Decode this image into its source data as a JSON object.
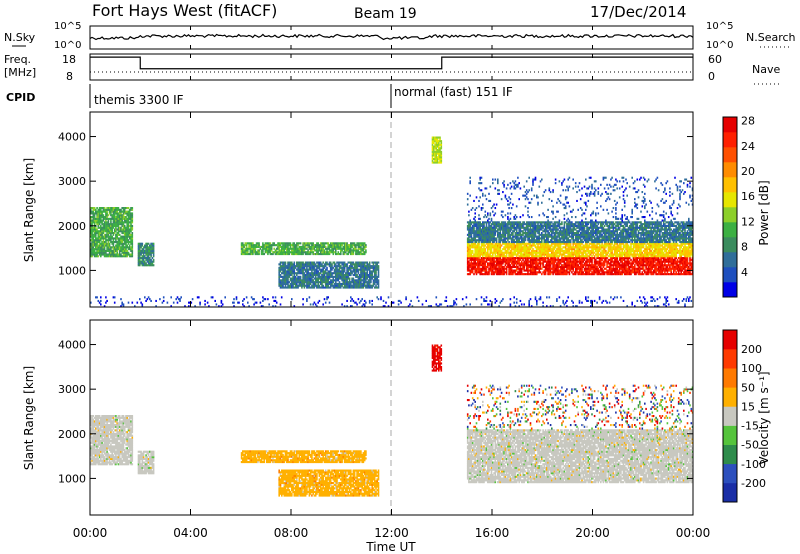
{
  "header": {
    "station": "Fort Hays West (fitACF)",
    "beam": "Beam 19",
    "date": "17/Dec/2014"
  },
  "noise_panel": {
    "left_label": "N.Sky",
    "right_label": "N.Search",
    "left_ticks": [
      "10^5",
      "10^0"
    ],
    "right_ticks": [
      "10^5",
      "10^0"
    ]
  },
  "freq_panel": {
    "left_label_line1": "Freq.",
    "left_label_line2": "[MHz]",
    "right_label": "Nave",
    "left_ticks": [
      "18",
      "8"
    ],
    "right_ticks": [
      "60",
      "0"
    ]
  },
  "cpid_panel": {
    "label": "CPID",
    "modes": [
      {
        "text": "themis 3300 IF",
        "start_hour": 0
      },
      {
        "text": "normal (fast) 151 IF",
        "start_hour": 12
      }
    ]
  },
  "time_axis": {
    "label": "Time UT",
    "ticks": [
      "00:00",
      "04:00",
      "08:00",
      "12:00",
      "16:00",
      "20:00",
      "00:00"
    ]
  },
  "chart_data": [
    {
      "type": "heatmap",
      "name": "power",
      "ylabel": "Slant Range [km]",
      "yticks": [
        "1000",
        "2000",
        "3000",
        "4000"
      ],
      "xlim_hours": [
        0,
        24
      ],
      "ylim_km": [
        180,
        4550
      ],
      "colorbar_label": "Power [dB]",
      "colorbar_ticks": [
        "4",
        "8",
        "12",
        "16",
        "20",
        "24",
        "28"
      ],
      "colorbar_colors": [
        "#0000e6",
        "#1e4fbe",
        "#2f6e9a",
        "#3b8c5e",
        "#3cb043",
        "#8ccf2a",
        "#e6e600",
        "#ffc000",
        "#ff8c00",
        "#ff5000",
        "#ff2000",
        "#e60000"
      ],
      "regions": [
        {
          "t0": 0.0,
          "t1": 1.7,
          "r0": 1300,
          "r1": 2400,
          "level": 0.35
        },
        {
          "t0": 1.9,
          "t1": 2.5,
          "r0": 1100,
          "r1": 1600,
          "level": 0.25
        },
        {
          "t0": 6.0,
          "t1": 11.0,
          "r0": 1350,
          "r1": 1600,
          "level": 0.35
        },
        {
          "t0": 7.5,
          "t1": 11.5,
          "r0": 600,
          "r1": 1200,
          "level": 0.2
        },
        {
          "t0": 13.6,
          "t1": 14.0,
          "r0": 3400,
          "r1": 4000,
          "level": 0.5
        },
        {
          "t0": 15.0,
          "t1": 24.0,
          "r0": 900,
          "r1": 2100,
          "level": 0.75
        },
        {
          "t0": 15.0,
          "t1": 24.0,
          "r0": 2100,
          "r1": 3100,
          "level": 0.1
        },
        {
          "t0": 0.0,
          "t1": 24.0,
          "r0": 180,
          "r1": 400,
          "level": 0.05
        }
      ]
    },
    {
      "type": "heatmap",
      "name": "velocity",
      "ylabel": "Slant Range [km]",
      "yticks": [
        "1000",
        "2000",
        "3000",
        "4000"
      ],
      "xlim_hours": [
        0,
        24
      ],
      "ylim_km": [
        180,
        4550
      ],
      "colorbar_label": "Velocity [m s⁻¹]",
      "colorbar_ticks": [
        "200",
        "100",
        "50",
        "15",
        "-15",
        "-50",
        "-100",
        "-200"
      ],
      "colorbar_colors": [
        "#1a2ea6",
        "#2c4fbd",
        "#2e8c4b",
        "#55c43c",
        "#c8c8c0",
        "#ffb000",
        "#ff7a00",
        "#ff3a00",
        "#e60000"
      ],
      "regions": [
        {
          "t0": 0.0,
          "t1": 1.7,
          "r0": 1300,
          "r1": 2400,
          "class": "gray"
        },
        {
          "t0": 1.9,
          "t1": 2.5,
          "r0": 1100,
          "r1": 1600,
          "class": "gray"
        },
        {
          "t0": 6.0,
          "t1": 11.0,
          "r0": 1350,
          "r1": 1600,
          "class": "orange"
        },
        {
          "t0": 7.5,
          "t1": 11.5,
          "r0": 600,
          "r1": 1200,
          "class": "orange"
        },
        {
          "t0": 13.6,
          "t1": 14.0,
          "r0": 3400,
          "r1": 4000,
          "class": "red"
        },
        {
          "t0": 15.0,
          "t1": 24.0,
          "r0": 900,
          "r1": 2100,
          "class": "gray"
        },
        {
          "t0": 15.0,
          "t1": 24.0,
          "r0": 2100,
          "r1": 3100,
          "class": "mixed"
        }
      ]
    }
  ]
}
